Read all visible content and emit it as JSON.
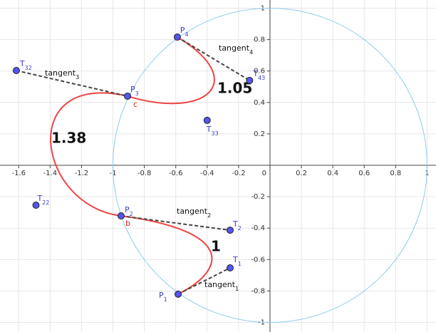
{
  "chart_data": {
    "type": "scatter",
    "xlim": [
      -1.719,
      1.057
    ],
    "ylim": [
      -1.061,
      1.052
    ],
    "xticks": [
      -1.6,
      -1.4,
      -1.2,
      -1,
      -0.8,
      -0.6,
      -0.4,
      -0.2,
      0,
      0.2,
      0.4,
      0.6,
      0.8,
      1
    ],
    "yticks": [
      -1,
      -0.8,
      -0.6,
      -0.4,
      -0.2,
      0.2,
      0.4,
      0.6,
      0.8,
      1
    ],
    "grid": true,
    "grid_color": "#e6e6e6",
    "axis_color": "#444",
    "circle": {
      "center": [
        0,
        0
      ],
      "radius": 1,
      "color": "#8ccde8"
    },
    "point_color": "#5555ee",
    "points": [
      {
        "label": "P",
        "sub": "1",
        "x": -0.585,
        "y": -0.82
      },
      {
        "label": "T",
        "sub": "1",
        "x": -0.254,
        "y": -0.653
      },
      {
        "label": "T",
        "sub": "2",
        "x": -0.254,
        "y": -0.413
      },
      {
        "label": "P",
        "sub": "2",
        "x": -0.948,
        "y": -0.322
      },
      {
        "label": "T",
        "sub": "22",
        "x": -1.49,
        "y": -0.254
      },
      {
        "label": "T",
        "sub": "32",
        "x": -1.615,
        "y": 0.603
      },
      {
        "label": "P",
        "sub": "3",
        "x": -0.907,
        "y": 0.44
      },
      {
        "label": "T",
        "sub": "33",
        "x": -0.4,
        "y": 0.286
      },
      {
        "label": "T",
        "sub": "43",
        "x": -0.13,
        "y": 0.54
      },
      {
        "label": "P",
        "sub": "4",
        "x": -0.59,
        "y": 0.816
      }
    ],
    "curve_color": "#ee4444",
    "curves": [
      {
        "points": [
          0,
          1,
          2,
          3
        ],
        "length": 1
      },
      {
        "points": [
          3,
          4,
          5,
          6
        ],
        "length": 1.38
      },
      {
        "points": [
          6,
          7,
          8,
          9
        ],
        "length": 1.05
      }
    ],
    "tangent_color": "#444",
    "tangents": [
      {
        "from": 0,
        "to": 1,
        "label": "tangent",
        "sub": "1"
      },
      {
        "from": 3,
        "to": 2,
        "label": "tangent",
        "sub": "2"
      },
      {
        "from": 5,
        "to": 6,
        "label": "tangent",
        "sub": "3"
      },
      {
        "from": 9,
        "to": 8,
        "label": "tangent",
        "sub": "4"
      }
    ],
    "annotations": [
      "b",
      "c"
    ]
  }
}
